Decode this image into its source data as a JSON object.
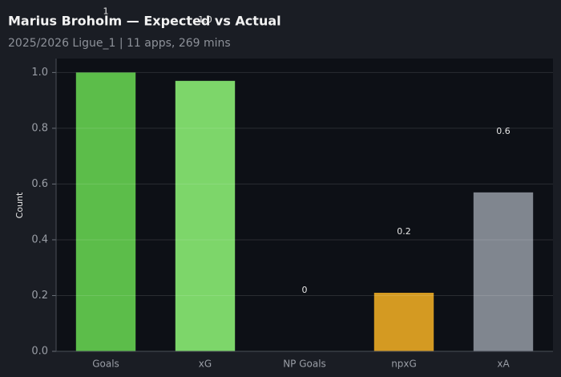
{
  "chart_data": {
    "type": "bar",
    "title": "Marius Broholm — Expected vs Actual",
    "subtitle": "2025/2026 Ligue_1 | 11 apps, 269 mins",
    "y_label": "Count",
    "categories": [
      "Goals",
      "xG",
      "NP Goals",
      "npxG",
      "xA"
    ],
    "values": [
      1,
      0.97,
      0,
      0.21,
      0.57
    ],
    "value_labels": [
      "1",
      "1.0",
      "0",
      "0.2",
      "0.6"
    ],
    "colors": [
      "#5cbd4a",
      "#7dd66a",
      "#8a8f98",
      "#d49a22",
      "#80868f"
    ],
    "ylim": [
      0,
      1.05
    ],
    "yticks": [
      {
        "value": 0,
        "label": "0.0"
      },
      0.2,
      0.4,
      0.6,
      0.8,
      {
        "value": 1,
        "label": "1.0"
      }
    ],
    "grid": true
  }
}
